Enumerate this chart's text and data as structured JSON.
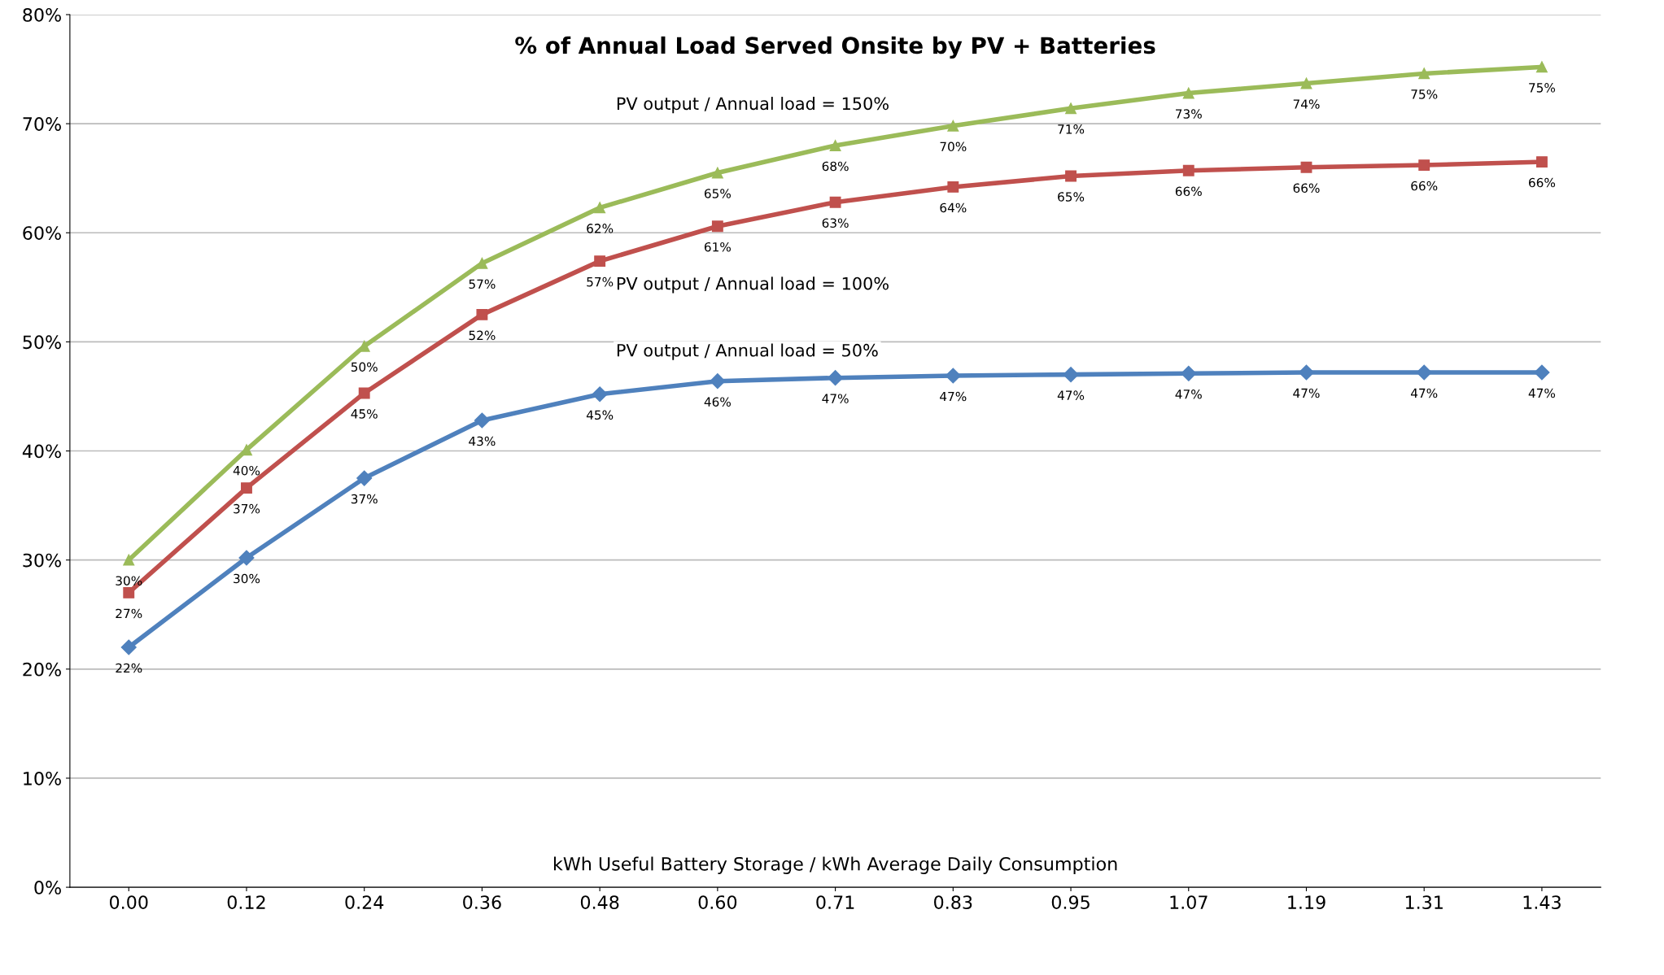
{
  "chart_data": {
    "type": "line",
    "title": "% of Annual Load Served Onsite by PV + Batteries",
    "xlabel": "kWh Useful Battery Storage / kWh Average Daily Consumption",
    "categories": [
      "0.00",
      "0.12",
      "0.24",
      "0.36",
      "0.48",
      "0.60",
      "0.71",
      "0.83",
      "0.95",
      "1.07",
      "1.19",
      "1.31",
      "1.43"
    ],
    "series": [
      {
        "name": "PV output / Annual load = 150%",
        "color": "#9bbb59",
        "marker": "triangle",
        "values": [
          30.0,
          40.1,
          49.6,
          57.2,
          62.3,
          65.5,
          68.0,
          69.8,
          71.4,
          72.8,
          73.7,
          74.6,
          75.2
        ],
        "value_labels": [
          "30%",
          "40%",
          "50%",
          "57%",
          "62%",
          "65%",
          "68%",
          "70%",
          "71%",
          "73%",
          "74%",
          "75%",
          "75%"
        ]
      },
      {
        "name": "PV output / Annual load = 100%",
        "color": "#c0504d",
        "marker": "square",
        "values": [
          27.0,
          36.6,
          45.3,
          52.5,
          57.4,
          60.6,
          62.8,
          64.2,
          65.2,
          65.7,
          66.0,
          66.2,
          66.5
        ],
        "value_labels": [
          "27%",
          "37%",
          "45%",
          "52%",
          "57%",
          "61%",
          "63%",
          "64%",
          "65%",
          "66%",
          "66%",
          "66%",
          "66%"
        ]
      },
      {
        "name": "PV output / Annual load = 50%",
        "color": "#4f81bd",
        "marker": "diamond",
        "values": [
          22.0,
          30.2,
          37.5,
          42.8,
          45.2,
          46.4,
          46.7,
          46.9,
          47.0,
          47.1,
          47.2,
          47.2,
          47.2
        ],
        "value_labels": [
          "22%",
          "30%",
          "37%",
          "43%",
          "45%",
          "46%",
          "47%",
          "47%",
          "47%",
          "47%",
          "47%",
          "47%",
          "47%"
        ]
      }
    ],
    "ylim": [
      0,
      80
    ],
    "yticks": [
      {
        "value": 0,
        "label": "0%"
      },
      {
        "value": 10,
        "label": "10%"
      },
      {
        "value": 20,
        "label": "20%"
      },
      {
        "value": 30,
        "label": "30%"
      },
      {
        "value": 40,
        "label": "40%"
      },
      {
        "value": 50,
        "label": "50%"
      },
      {
        "value": 60,
        "label": "60%"
      },
      {
        "value": 70,
        "label": "70%"
      },
      {
        "value": 80,
        "label": "80%"
      }
    ],
    "grid": "y",
    "line_style": "solid",
    "legend": false
  }
}
